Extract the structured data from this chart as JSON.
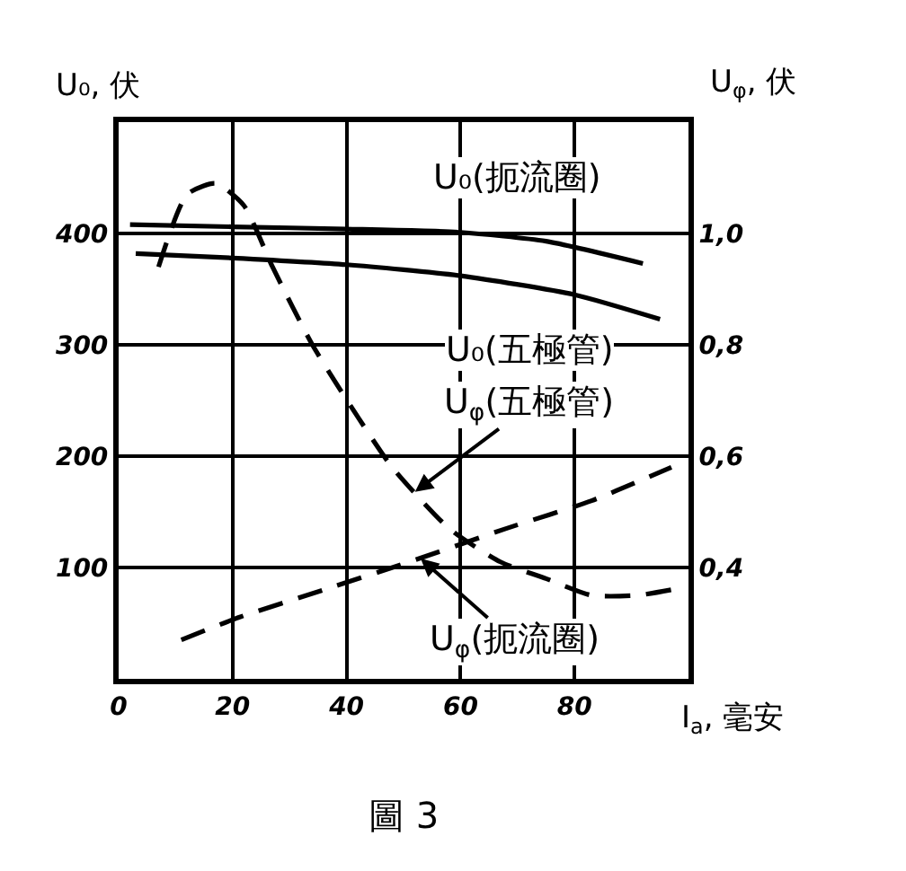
{
  "chart_data": {
    "type": "line",
    "xlabel": "I$_{a}$, 毫安",
    "ylabel": "U₀, 伏",
    "y2label": "U$_{φ}$, 伏",
    "xlim": [
      0,
      100
    ],
    "xticks": [
      0,
      20,
      40,
      60,
      80
    ],
    "ylim": [
      0,
      500
    ],
    "yticks": [
      100,
      200,
      300,
      400
    ],
    "y2lim": [
      0.2,
      1.2
    ],
    "y2ticks": [
      {
        "value": 0.4,
        "label": "0,4"
      },
      {
        "value": 0.6,
        "label": "0,6"
      },
      {
        "value": 0.8,
        "label": "0,8"
      },
      {
        "value": 1.0,
        "label": "1,0"
      }
    ],
    "grid": true,
    "series": [
      {
        "color": "#000000",
        "line_style": "solid",
        "x": [
          2,
          20,
          40,
          60,
          75,
          92
        ],
        "values": [
          408,
          406,
          404,
          401,
          393,
          373
        ]
      },
      {
        "color": "#000000",
        "line_style": "solid",
        "x": [
          3,
          20,
          40,
          60,
          80,
          95
        ],
        "values": [
          382,
          378,
          372,
          362,
          345,
          323
        ]
      },
      {
        "color": "#000000",
        "line_style": "dashed",
        "axis": "y2",
        "x": [
          7,
          12,
          17,
          22,
          27,
          34,
          42,
          48,
          58,
          67,
          75,
          83,
          91,
          97
        ],
        "values": [
          0.94,
          1.07,
          1.09,
          1.05,
          0.94,
          0.8,
          0.67,
          0.58,
          0.47,
          0.41,
          0.38,
          0.35,
          0.35,
          0.36
        ]
      },
      {
        "color": "#000000",
        "line_style": "dashed",
        "axis": "y2",
        "x": [
          11,
          21,
          36,
          51,
          68,
          83,
          97
        ],
        "values": [
          0.27,
          0.31,
          0.36,
          0.41,
          0.47,
          0.52,
          0.58
        ]
      }
    ],
    "annotations": [
      "U₀(扼流圈)",
      "U₀(五極管)",
      {
        "text": "U$_{φ}$(五極管)",
        "x": 52,
        "y": 168
      },
      {
        "text": "U$_{φ}$(扼流圈)",
        "x": 53,
        "y": 108
      },
      "圖 3"
    ]
  }
}
